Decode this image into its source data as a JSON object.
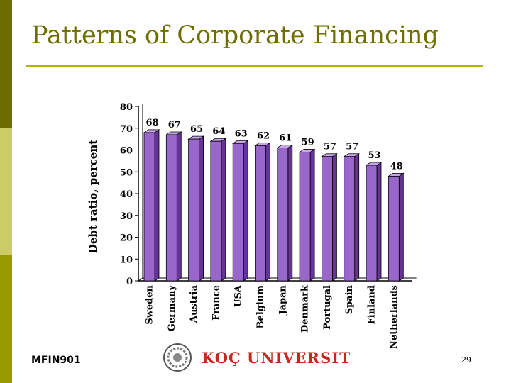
{
  "slide": {
    "title": "Patterns of Corporate Financing",
    "footer_left": "MFIN901",
    "page_number": "29",
    "logo_text": "KOÇ UNIVERSITY"
  },
  "colors": {
    "accent": "#6e6e00",
    "bar_face": "#9966cc",
    "bar_side": "#663399",
    "bar_top": "#c7a6e6",
    "logo_red": "#c6281e"
  },
  "chart_data": {
    "type": "bar",
    "categories": [
      "Sweden",
      "Germany",
      "Austria",
      "France",
      "USA",
      "Belgium",
      "Japan",
      "Denmark",
      "Portugal",
      "Spain",
      "Finland",
      "Netherlands"
    ],
    "values": [
      68,
      67,
      65,
      64,
      63,
      62,
      61,
      59,
      57,
      57,
      53,
      48
    ],
    "data_labels": [
      "68",
      "67",
      "65",
      "64",
      "63",
      "62",
      "61",
      "59",
      "57",
      "57",
      "53",
      "48"
    ],
    "yticks": [
      "0",
      "10",
      "20",
      "30",
      "40",
      "50",
      "60",
      "70",
      "80"
    ],
    "ylabel": "Debt ratio, percent",
    "ylim": [
      0,
      80
    ],
    "grid": false,
    "legend": "none"
  }
}
